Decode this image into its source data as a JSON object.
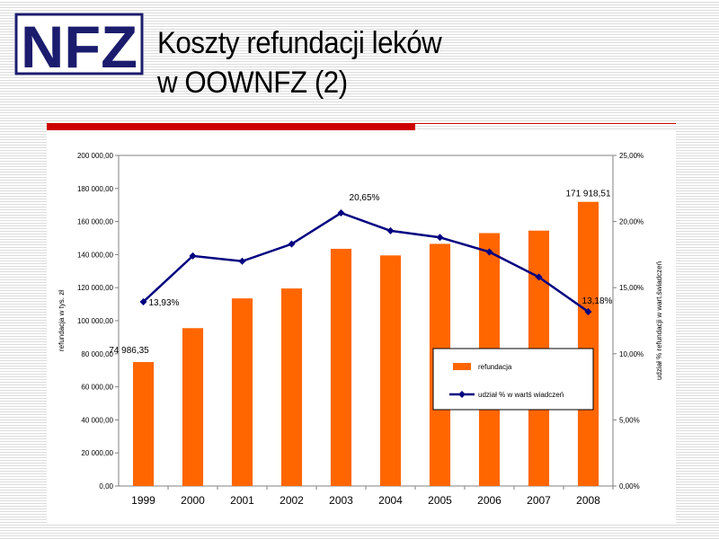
{
  "logo": {
    "text": "NFZ"
  },
  "title": {
    "line1": "Koszty refundacji leków",
    "line2": "w OOWNFZ (2)"
  },
  "colors": {
    "bar": "#ff6600",
    "line": "#000080",
    "accent_rule": "#cc0000"
  },
  "chart_data": {
    "type": "bar",
    "categories": [
      "1999",
      "2000",
      "2001",
      "2002",
      "2003",
      "2004",
      "2005",
      "2006",
      "2007",
      "2008"
    ],
    "series": [
      {
        "name": "refundacja",
        "type": "bar",
        "axis": "left",
        "color": "#ff6600",
        "values": [
          74986.35,
          95500,
          113500,
          119500,
          143500,
          139500,
          146500,
          153000,
          154500,
          171918.51
        ]
      },
      {
        "name": "udział % w wartś wiadczeń",
        "type": "line",
        "axis": "right",
        "color": "#000080",
        "marker": "diamond",
        "values": [
          13.93,
          17.4,
          17.0,
          18.3,
          20.65,
          19.3,
          18.8,
          17.7,
          15.8,
          13.18
        ]
      }
    ],
    "ylabel": "refundacja w tys. zł",
    "y2label": "udział % refundacji w wart.świadczeń",
    "ylim": [
      0,
      200000
    ],
    "y2lim": [
      0,
      25
    ],
    "yticks": [
      "0,00",
      "20 000,00",
      "40 000,00",
      "60 000,00",
      "80 000,00",
      "100 000,00",
      "120 000,00",
      "140 000,00",
      "160 000,00",
      "180 000,00",
      "200 000,00"
    ],
    "y2ticks": [
      "0,00%",
      "5,00%",
      "10,00%",
      "15,00%",
      "20,00%",
      "25,00%"
    ],
    "data_labels": [
      {
        "series": 0,
        "index": 0,
        "text": "74 986,35"
      },
      {
        "series": 0,
        "index": 9,
        "text": "171 918,51"
      },
      {
        "series": 1,
        "index": 0,
        "text": "13,93%"
      },
      {
        "series": 1,
        "index": 4,
        "text": "20,65%"
      },
      {
        "series": 1,
        "index": 9,
        "text": "13,18%"
      }
    ],
    "legend": [
      "refundacja",
      "udział % w wartś wiadczeń"
    ],
    "legend_position": "right",
    "grid": false
  }
}
